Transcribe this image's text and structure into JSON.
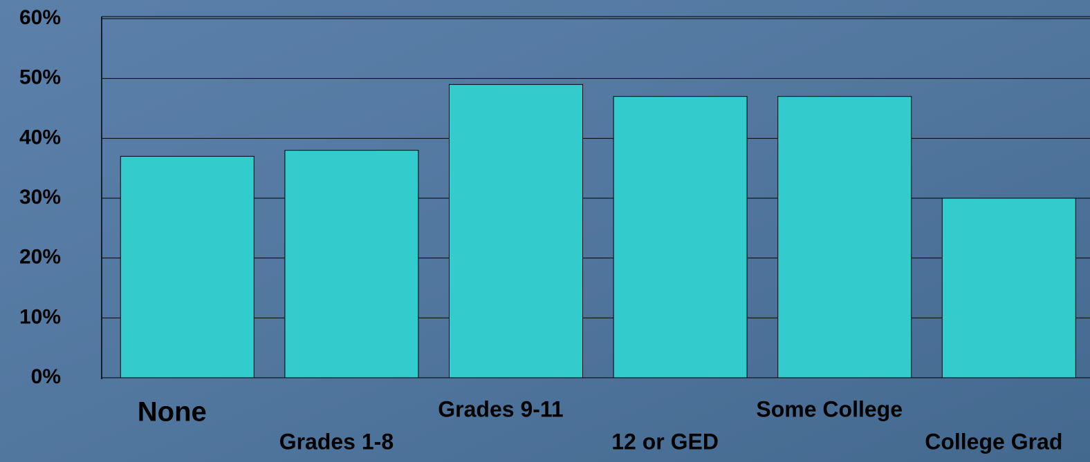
{
  "chart_data": {
    "type": "bar",
    "categories": [
      "None",
      "Grades 1-8",
      "Grades 9-11",
      "12 or GED",
      "Some College",
      "College Grad"
    ],
    "values": [
      37,
      38,
      49,
      47,
      47,
      30
    ],
    "color": "#33cccc",
    "ylim": [
      0,
      60
    ],
    "yticks": [
      {
        "value": 0,
        "label": "0%"
      },
      {
        "value": 10,
        "label": "10%"
      },
      {
        "value": 20,
        "label": "20%"
      },
      {
        "value": 30,
        "label": "30%"
      },
      {
        "value": 40,
        "label": "40%"
      },
      {
        "value": 50,
        "label": "50%"
      },
      {
        "value": 60,
        "label": "60%"
      }
    ],
    "grid": true
  }
}
